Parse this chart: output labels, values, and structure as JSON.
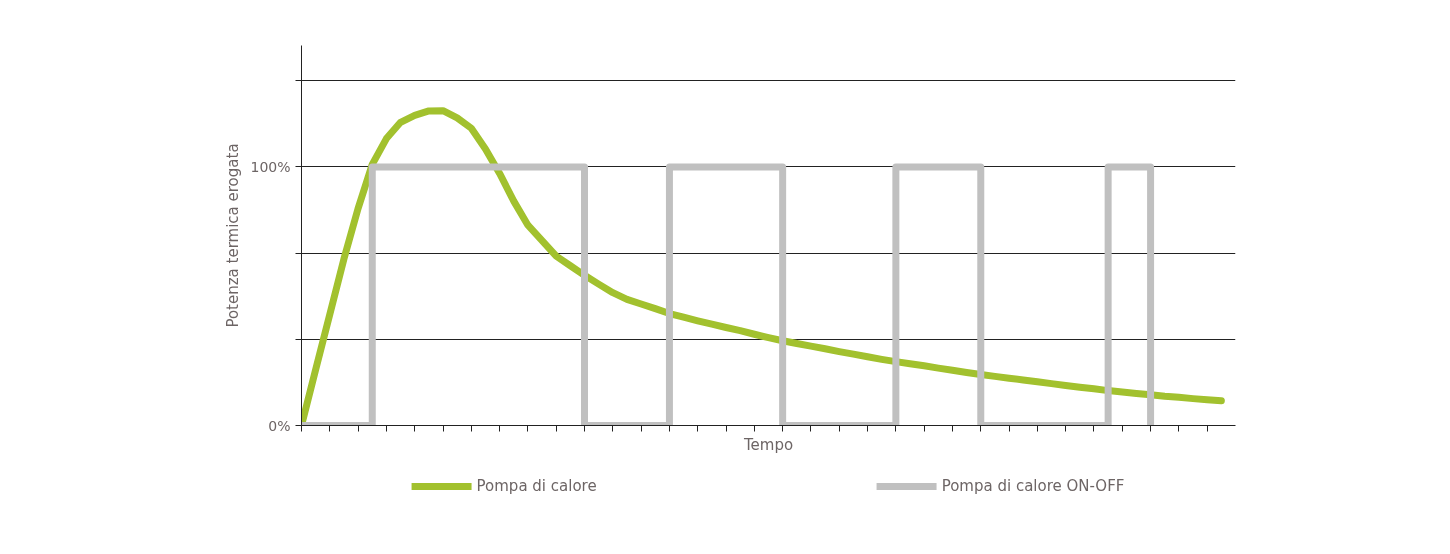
{
  "chart_data": {
    "type": "line",
    "xlabel": "Tempo",
    "ylabel": "Potenza termica erogata",
    "categories": [
      null,
      null,
      null,
      null,
      null,
      null,
      null,
      null,
      null,
      null,
      null,
      null,
      null,
      null,
      null,
      null,
      null,
      null,
      null,
      null,
      null,
      null,
      null,
      null,
      null,
      null,
      null,
      null,
      null,
      null,
      null,
      null,
      null,
      null,
      null,
      null,
      null,
      null,
      null,
      null,
      null,
      null,
      null,
      null,
      null,
      null,
      null,
      null,
      null,
      null,
      null,
      null,
      null,
      null,
      null,
      null,
      null,
      null,
      null,
      null,
      null,
      null,
      null,
      null,
      null,
      null
    ],
    "ylim": [
      0,
      147
    ],
    "yticks": [
      {
        "value": 0,
        "label": "0%"
      },
      {
        "value": 33.3,
        "label": null
      },
      {
        "value": 66.7,
        "label": null
      },
      {
        "value": 100,
        "label": "100%"
      },
      {
        "value": 133.3,
        "label": null
      }
    ],
    "tick_labels": "y",
    "grid": "y",
    "legend": "bottom",
    "marker": "none",
    "line_style": "solid",
    "series": [
      {
        "name": "Pompa di calore",
        "color": "#a2c12e",
        "values": [
          0,
          21.6,
          43,
          64.5,
          84,
          101,
          111,
          117.3,
          120,
          121.7,
          121.8,
          119,
          115,
          107,
          97.5,
          86.8,
          77.5,
          71.5,
          65.5,
          61.8,
          58.1,
          54.7,
          51.4,
          48.8,
          47,
          45.2,
          43.3,
          41.9,
          40.5,
          39.2,
          37.9,
          36.7,
          35.3,
          34,
          32.8,
          31.7,
          30.7,
          29.7,
          28.6,
          27.6,
          26.6,
          25.6,
          24.7,
          23.9,
          23.1,
          22.2,
          21.4,
          20.5,
          19.7,
          19,
          18.3,
          17.6,
          16.9,
          16.2,
          15.5,
          14.8,
          14.2,
          13.5,
          13,
          12.4,
          11.9,
          11.3,
          10.9,
          10.4,
          10,
          9.6
        ]
      },
      {
        "name": "Pompa di calore ON-OFF",
        "type": "step",
        "color": "#c0c0c0",
        "values": [
          0,
          0,
          0,
          0,
          0,
          100,
          100,
          100,
          100,
          100,
          100,
          100,
          100,
          100,
          100,
          100,
          100,
          100,
          100,
          100,
          0,
          0,
          0,
          0,
          0,
          0,
          100,
          100,
          100,
          100,
          100,
          100,
          100,
          100,
          0,
          0,
          0,
          0,
          0,
          0,
          0,
          0,
          100,
          100,
          100,
          100,
          100,
          100,
          0,
          0,
          0,
          0,
          0,
          0,
          0,
          0,
          0,
          100,
          100,
          100,
          0,
          null,
          null,
          null,
          null,
          null
        ]
      }
    ]
  }
}
